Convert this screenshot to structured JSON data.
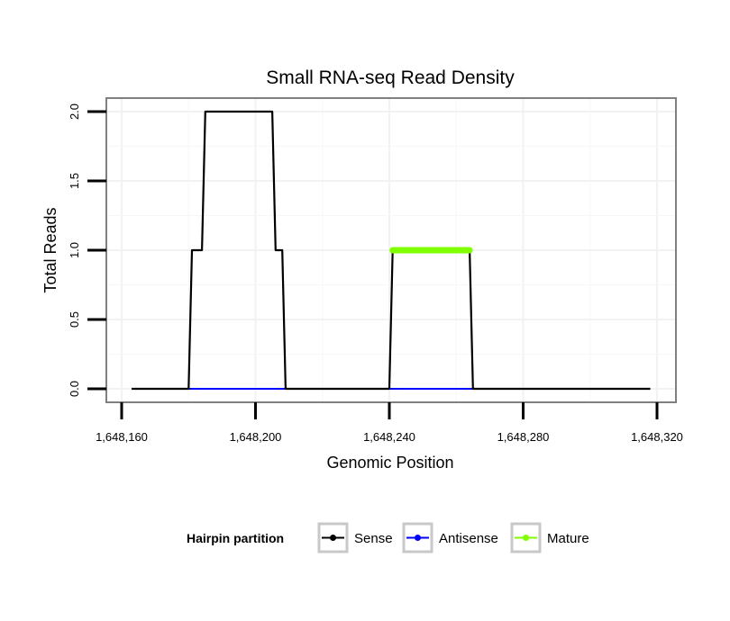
{
  "chart_data": {
    "type": "line",
    "title": "Small RNA-seq Read Density",
    "xlabel": "Genomic Position",
    "ylabel": "Total Reads",
    "xlim": [
      1648160,
      1648320
    ],
    "ylim": [
      0,
      2
    ],
    "x_ticks": [
      1648160,
      1648200,
      1648240,
      1648280,
      1648320
    ],
    "x_tick_labels": [
      "1,648,160",
      "1,648,200",
      "1,648,240",
      "1,648,280",
      "1,648,320"
    ],
    "y_ticks": [
      0,
      0.5,
      1,
      1.5,
      2
    ],
    "y_tick_labels": [
      "0.0",
      "0.5",
      "1.0",
      "1.5",
      "2.0"
    ],
    "grid": true,
    "legend": {
      "title": "Hairpin partition",
      "position": "bottom",
      "entries": [
        "Sense",
        "Antisense",
        "Mature"
      ]
    },
    "series": [
      {
        "name": "Sense",
        "color": "#000000",
        "x": [
          1648163,
          1648180,
          1648181,
          1648183,
          1648184,
          1648185,
          1648186,
          1648200,
          1648201,
          1648204,
          1648205,
          1648206,
          1648207,
          1648208,
          1648209,
          1648240,
          1648241,
          1648264,
          1648265,
          1648318
        ],
        "y": [
          0,
          0,
          1,
          1,
          1,
          2,
          2,
          2,
          2,
          2,
          2,
          1,
          1,
          1,
          0,
          0,
          1,
          1,
          0,
          0
        ]
      },
      {
        "name": "Antisense",
        "color": "#0000FF",
        "x": [
          1648180,
          1648209
        ],
        "y": [
          0,
          0
        ],
        "x2": [
          1648240,
          1648265
        ],
        "y2": [
          0,
          0
        ]
      },
      {
        "name": "Mature",
        "color": "#7FFF00",
        "x": [
          1648241,
          1648264
        ],
        "y": [
          1,
          1
        ]
      }
    ]
  }
}
